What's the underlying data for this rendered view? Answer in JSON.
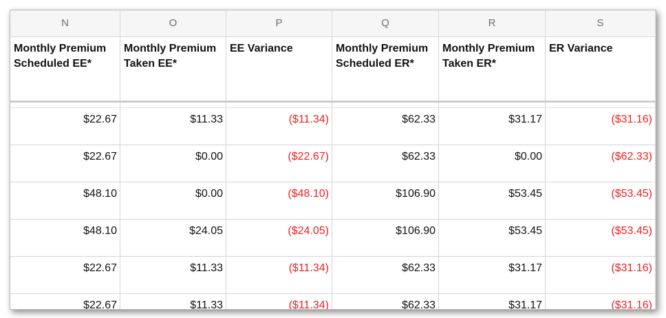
{
  "columns": [
    {
      "letter": "N",
      "header": "Monthly Premium Scheduled EE*"
    },
    {
      "letter": "O",
      "header": "Monthly Premium Taken EE*"
    },
    {
      "letter": "P",
      "header": "EE Variance"
    },
    {
      "letter": "Q",
      "header": "Monthly Premium Scheduled ER*"
    },
    {
      "letter": "R",
      "header": "Monthly Premium Taken ER*"
    },
    {
      "letter": "S",
      "header": "ER Variance"
    }
  ],
  "rows": [
    [
      "$22.67",
      "$11.33",
      "($11.34)",
      "$62.33",
      "$31.17",
      "($31.16)"
    ],
    [
      "$22.67",
      "$0.00",
      "($22.67)",
      "$62.33",
      "$0.00",
      "($62.33)"
    ],
    [
      "$48.10",
      "$0.00",
      "($48.10)",
      "$106.90",
      "$53.45",
      "($53.45)"
    ],
    [
      "$48.10",
      "$24.05",
      "($24.05)",
      "$106.90",
      "$53.45",
      "($53.45)"
    ],
    [
      "$22.67",
      "$11.33",
      "($11.34)",
      "$62.33",
      "$31.17",
      "($31.16)"
    ],
    [
      "$22.67",
      "$11.33",
      "($11.34)",
      "$62.33",
      "$31.17",
      "($31.16)"
    ]
  ],
  "colors": {
    "negative": "#ee2020",
    "text": "#111111",
    "column_letter": "#6f6f6f"
  }
}
